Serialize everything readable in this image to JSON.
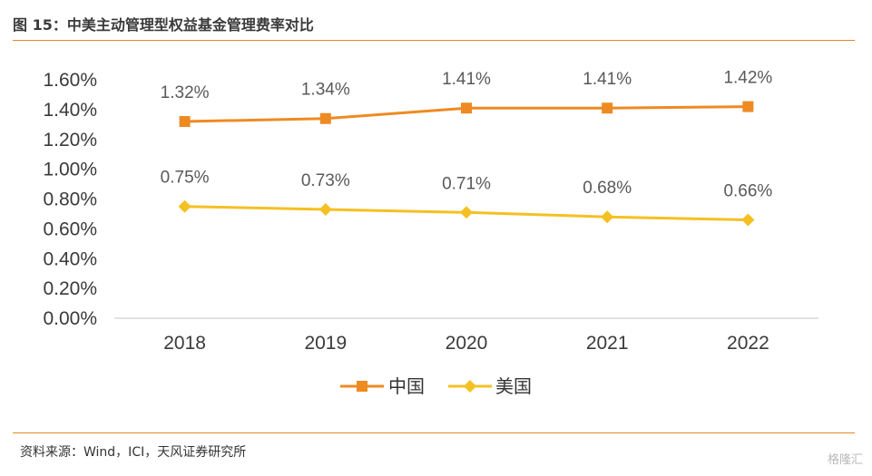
{
  "figure": {
    "title": "图 15：中美主动管理型权益基金管理费率对比",
    "source": "资料来源：Wind，ICI，天风证券研究所",
    "watermark": "格隆汇"
  },
  "colors": {
    "china": "#ee8a22",
    "usa": "#f5c022",
    "rule": "#e8861f",
    "axis": "#d9d9d9"
  },
  "chart_data": {
    "type": "line",
    "categories": [
      "2018",
      "2019",
      "2020",
      "2021",
      "2022"
    ],
    "series": [
      {
        "name": "中国",
        "values": [
          1.32,
          1.34,
          1.41,
          1.41,
          1.42
        ],
        "labels": [
          "1.32%",
          "1.34%",
          "1.41%",
          "1.41%",
          "1.42%"
        ],
        "marker": "square"
      },
      {
        "name": "美国",
        "values": [
          0.75,
          0.73,
          0.71,
          0.68,
          0.66
        ],
        "labels": [
          "0.75%",
          "0.73%",
          "0.71%",
          "0.68%",
          "0.66%"
        ],
        "marker": "diamond"
      }
    ],
    "yticks": [
      "0.00%",
      "0.20%",
      "0.40%",
      "0.60%",
      "0.80%",
      "1.00%",
      "1.20%",
      "1.40%",
      "1.60%"
    ],
    "ylim": [
      0,
      1.6
    ],
    "grid": false,
    "legend": "bottom"
  }
}
